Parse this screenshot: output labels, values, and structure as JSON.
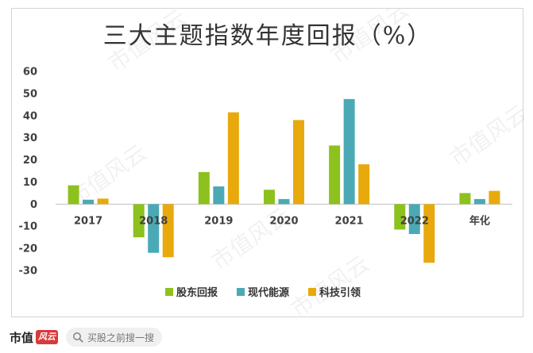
{
  "chart_data": {
    "type": "bar",
    "title": "三大主题指数年度回报（%）",
    "categories": [
      "2017",
      "2018",
      "2019",
      "2020",
      "2021",
      "2022",
      "年化"
    ],
    "series": [
      {
        "name": "股东回报",
        "color": "#8dc11e",
        "values": [
          8.5,
          -15,
          14.5,
          6.5,
          26.5,
          -11.5,
          5
        ]
      },
      {
        "name": "现代能源",
        "color": "#4ba9b5",
        "values": [
          2,
          -22,
          8,
          2.3,
          47.5,
          -13.5,
          2.3
        ]
      },
      {
        "name": "科技引领",
        "color": "#e8a90d",
        "values": [
          2.5,
          -24,
          41.5,
          38,
          18,
          -26.5,
          6
        ]
      }
    ],
    "ylim": [
      -30,
      60
    ],
    "yticks": [
      "60",
      "50",
      "40",
      "30",
      "20",
      "10",
      "0",
      "-10",
      "-20",
      "-30"
    ],
    "grid": false,
    "legend_position": "bottom"
  },
  "watermark": "市值风云",
  "footer": {
    "brand_text": "市值",
    "brand_stamp": "风云",
    "search_placeholder": "买股之前搜一搜",
    "search_icon": "search-icon"
  }
}
